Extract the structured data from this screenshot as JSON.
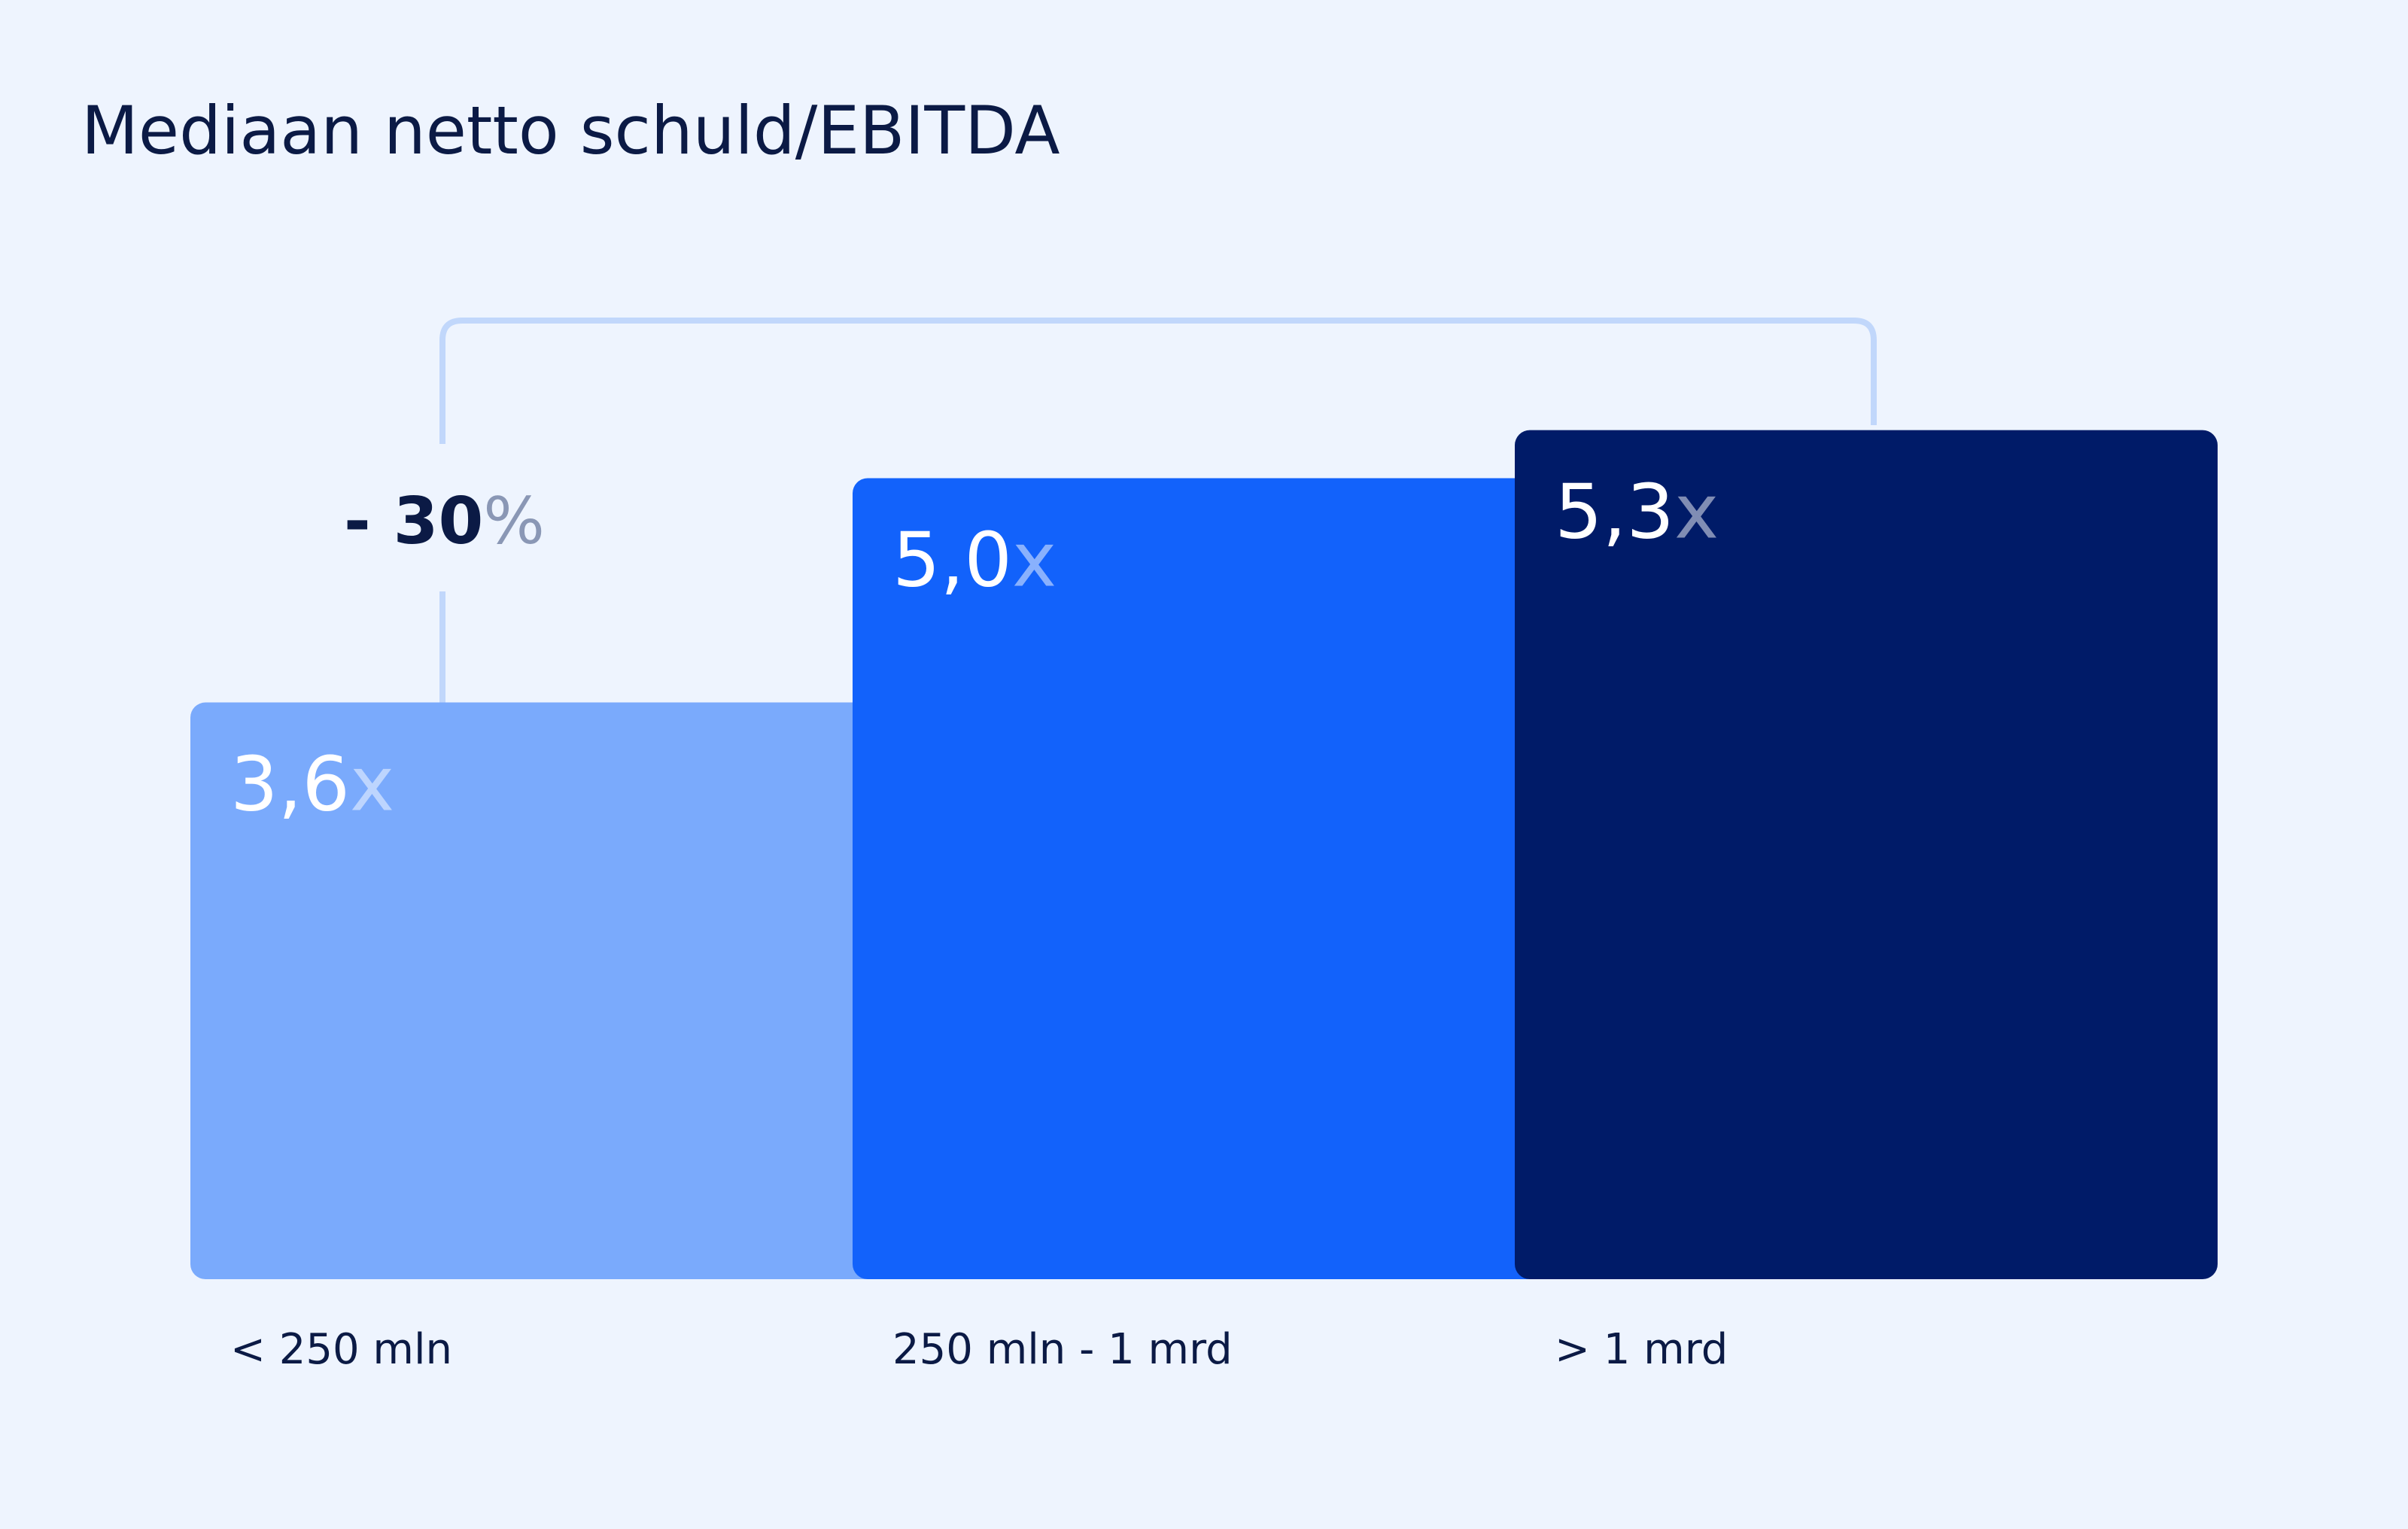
{
  "chart_data": {
    "type": "bar",
    "title": "Mediaan netto schuld/EBITDA",
    "categories": [
      "< 250 mln",
      "250 mln - 1 mrd",
      "> 1 mrd"
    ],
    "values": [
      3.6,
      5.0,
      5.3
    ],
    "value_labels": [
      "3,6",
      "5,0",
      "5,3"
    ],
    "value_unit": "x",
    "colors": [
      "#7aaafc",
      "#1262fb",
      "#001b68"
    ],
    "annotation": {
      "label": "- 30",
      "unit": "%"
    }
  }
}
